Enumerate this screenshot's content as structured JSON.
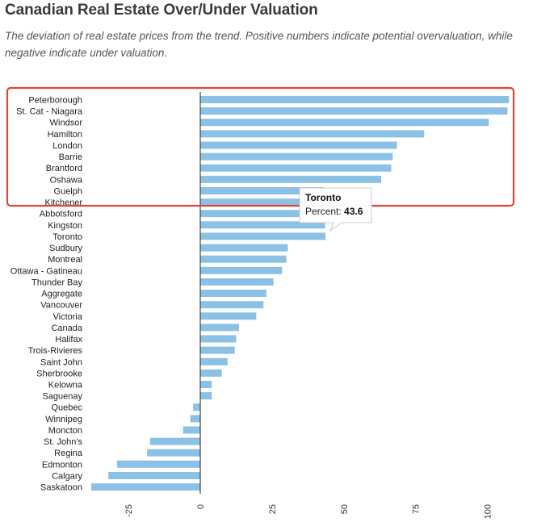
{
  "header": {
    "title": "Canadian Real Estate Over/Under Valuation",
    "subtitle": "The deviation of real estate prices from the trend. Positive numbers indicate potential overvaluation, while negative indicate under valuation."
  },
  "colors": {
    "bar": "#8cc1e6",
    "axis": "#222222",
    "highlight_box": "#e0453a",
    "tooltip_border": "#cccccc"
  },
  "chart_data": {
    "type": "bar",
    "orientation": "horizontal",
    "title": "Canadian Real Estate Over/Under Valuation",
    "series_name": "Percent",
    "categories": [
      "Peterborough",
      "St. Cat - Niagara",
      "Windsor",
      "Hamilton",
      "London",
      "Barrie",
      "Brantford",
      "Oshawa",
      "Guelph",
      "Kitchener",
      "Abbotsford",
      "Kingston",
      "Toronto",
      "Sudbury",
      "Montreal",
      "Ottawa - Gatineau",
      "Thunder Bay",
      "Aggregate",
      "Vancouver",
      "Victoria",
      "Canada",
      "Halifax",
      "Trois-Rivieres",
      "Saint John",
      "Sherbrooke",
      "Kelowna",
      "Saguenay",
      "Quebec",
      "Winnipeg",
      "Moncton",
      "St. John's",
      "Regina",
      "Edmonton",
      "Calgary",
      "Saskatoon"
    ],
    "values": [
      107.5,
      107,
      100.5,
      78,
      68.5,
      67,
      66.5,
      63,
      43,
      43,
      43.5,
      43.5,
      43.6,
      30.5,
      30,
      28.5,
      25.5,
      23,
      22,
      19.5,
      13.5,
      12.5,
      12,
      9.5,
      7.5,
      4,
      4,
      -2.5,
      -3.5,
      -6,
      -17.5,
      -18.5,
      -29,
      -32,
      -38
    ],
    "x_ticks": [
      -25,
      0,
      25,
      50,
      75,
      100
    ],
    "xlim": [
      -41,
      110
    ],
    "tooltip": {
      "category": "Toronto",
      "label": "Percent: ",
      "value": "43.6"
    }
  }
}
